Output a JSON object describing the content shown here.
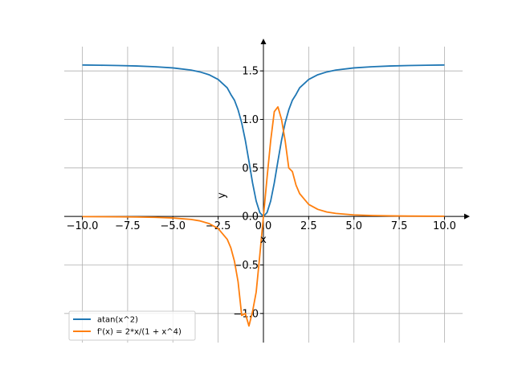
{
  "chart_data": {
    "type": "line",
    "title": "",
    "xlabel": "x",
    "ylabel": "y",
    "xlim": [
      -11,
      11
    ],
    "ylim": [
      -1.3,
      1.75
    ],
    "grid": true,
    "legend_position": "lower-left",
    "x_ticks": [
      -10,
      -7.5,
      -5,
      -2.5,
      0,
      2.5,
      5,
      7.5,
      10
    ],
    "x_tick_labels": [
      "−10.0",
      "−7.5",
      "−5.0",
      "−2.5",
      "0.0",
      "2.5",
      "5.0",
      "7.5",
      "10.0"
    ],
    "y_ticks": [
      -1.0,
      -0.5,
      0.0,
      0.5,
      1.0,
      1.5
    ],
    "y_tick_labels": [
      "−1.0",
      "−0.5",
      "0.0",
      "0.5",
      "1.0",
      "1.5"
    ],
    "x": [
      -10,
      -9,
      -8,
      -7,
      -6,
      -5,
      -4,
      -3.5,
      -3,
      -2.5,
      -2,
      -1.8,
      -1.6,
      -1.4,
      -1.2,
      -1,
      -0.8,
      -0.6,
      -0.4,
      -0.2,
      0,
      0.2,
      0.4,
      0.6,
      0.8,
      1,
      1.2,
      1.4,
      1.6,
      1.8,
      2,
      2.5,
      3,
      3.5,
      4,
      5,
      6,
      7,
      8,
      9,
      10
    ],
    "series": [
      {
        "name": "atan(x^2)",
        "color": "#1f77b4",
        "values": [
          1.5608,
          1.5584,
          1.5552,
          1.5504,
          1.543,
          1.5308,
          1.5084,
          1.4893,
          1.4601,
          1.4115,
          1.3258,
          1.257,
          1.1981,
          1.0984,
          0.9641,
          0.7854,
          0.5693,
          0.3455,
          0.1587,
          0.04,
          0.0,
          0.04,
          0.1587,
          0.3455,
          0.5693,
          0.7854,
          0.9641,
          1.0984,
          1.1981,
          1.257,
          1.3258,
          1.4115,
          1.4601,
          1.4893,
          1.5084,
          1.5308,
          1.543,
          1.5504,
          1.5552,
          1.5584,
          1.5608
        ]
      },
      {
        "name": "f'(x) = 2*x/(1 + x^4)",
        "color": "#ff7f0e",
        "values": [
          -0.002,
          -0.0027,
          -0.0039,
          -0.0058,
          -0.0093,
          -0.016,
          -0.0311,
          -0.046,
          -0.0732,
          -0.1243,
          -0.2353,
          -0.3228,
          -0.462,
          -0.673,
          -1.02,
          -1.0,
          -1.129,
          -0.98,
          -0.78,
          -0.399,
          0.0,
          0.399,
          0.78,
          1.08,
          1.129,
          1.0,
          0.78,
          0.5,
          0.462,
          0.3228,
          0.2353,
          0.1243,
          0.0732,
          0.046,
          0.0311,
          0.016,
          0.0093,
          0.0058,
          0.0039,
          0.0027,
          0.002
        ]
      }
    ]
  }
}
